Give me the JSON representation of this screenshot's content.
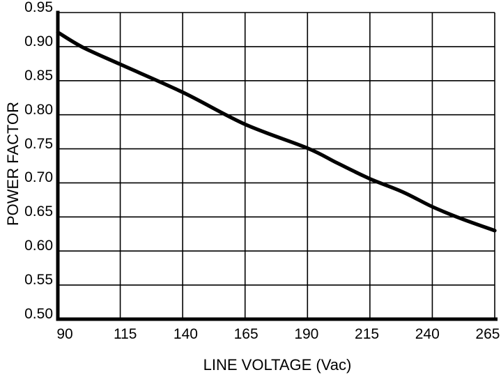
{
  "chart_data": {
    "type": "line",
    "title": "",
    "xlabel": "LINE VOLTAGE (Vac)",
    "ylabel": "POWER FACTOR",
    "xlim": [
      90,
      265
    ],
    "ylim": [
      0.5,
      0.95
    ],
    "x_ticks": [
      90,
      115,
      140,
      165,
      190,
      215,
      240,
      265
    ],
    "y_ticks": [
      0.5,
      0.55,
      0.6,
      0.65,
      0.7,
      0.75,
      0.8,
      0.85,
      0.9,
      0.95
    ],
    "grid": true,
    "legend_position": "none",
    "series": [
      {
        "name": "Power factor vs line voltage",
        "x": [
          90,
          100,
          115,
          140,
          165,
          190,
          202,
          215,
          228,
          240,
          252,
          265
        ],
        "y": [
          0.921,
          0.899,
          0.874,
          0.833,
          0.786,
          0.751,
          0.729,
          0.706,
          0.687,
          0.665,
          0.647,
          0.63
        ]
      }
    ]
  },
  "colors": {
    "background": "#ffffff",
    "line": "#000000",
    "grid": "#000000",
    "axis": "#000000",
    "text": "#000000"
  }
}
